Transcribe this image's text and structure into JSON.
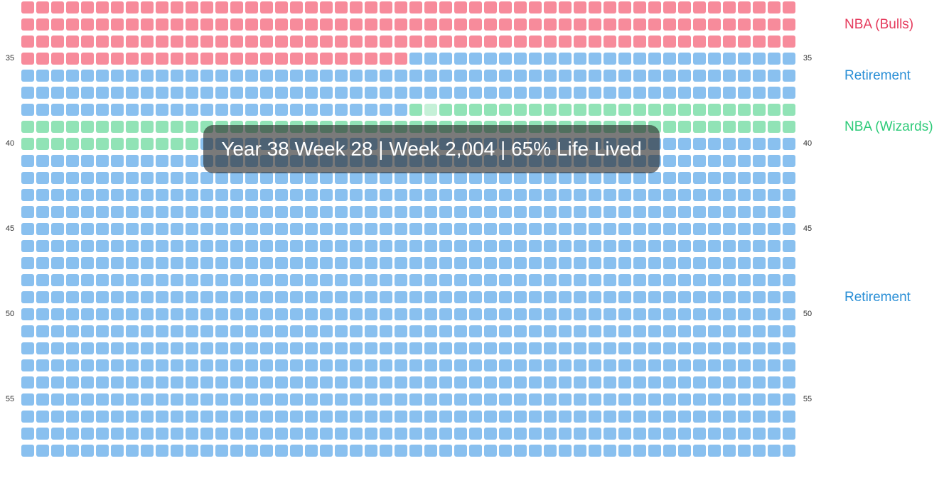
{
  "grid": {
    "first_year": 32,
    "weeks_per_year": 52,
    "last_year": 58,
    "highlighted_week": {
      "year": 38,
      "week": 28
    }
  },
  "colors": {
    "bulls": "#f78b9b",
    "retirement": "#89c0ef",
    "wizards": "#91e3b6",
    "wizards_highlight": "#c5f0d7",
    "bulls_text": "#e53a5c",
    "retirement_text": "#2a8fd6",
    "wizards_text": "#2ecb79"
  },
  "periods": [
    {
      "name": "NBA (Bulls)",
      "start": {
        "year": 32,
        "week": 1
      },
      "end": {
        "year": 35,
        "week": 26
      },
      "color_key": "bulls"
    },
    {
      "name": "Retirement",
      "start": {
        "year": 35,
        "week": 27
      },
      "end": {
        "year": 38,
        "week": 26
      },
      "color_key": "retirement"
    },
    {
      "name": "NBA (Wizards)",
      "start": {
        "year": 38,
        "week": 27
      },
      "end": {
        "year": 40,
        "week": 12
      },
      "color_key": "wizards"
    },
    {
      "name": "Retirement",
      "start": {
        "year": 40,
        "week": 13
      },
      "end": {
        "year": 58,
        "week": 52
      },
      "color_key": "retirement"
    }
  ],
  "labels": {
    "period_labels": [
      "NBA (Bulls)",
      "Retirement",
      "NBA (Wizards)",
      "Retirement"
    ],
    "age_ticks": [
      "35",
      "40",
      "45",
      "50",
      "55"
    ]
  },
  "tooltip": {
    "text": "Year 38 Week 28 | Week 2,004 | 65% Life Lived"
  }
}
